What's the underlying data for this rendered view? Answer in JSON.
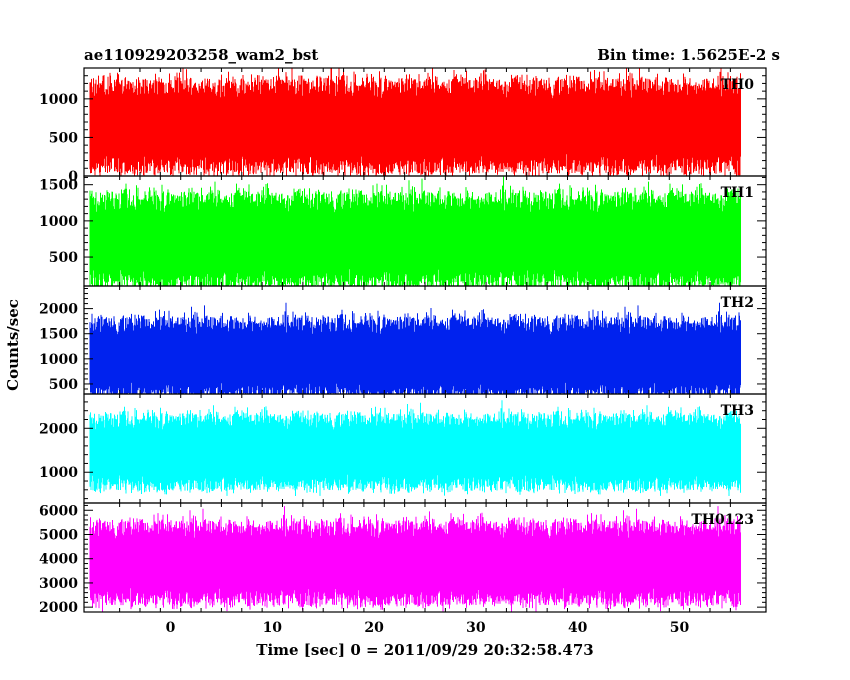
{
  "header": {
    "title": "ae110929203258_wam2_bst",
    "bin_time": "Bin time: 1.5625E-2 s"
  },
  "chart_data": {
    "type": "line",
    "title": "ae110929203258_wam2_bst",
    "subtitle": "Bin time: 1.5625E-2 s",
    "xlabel": "Time [sec] 0 = 2011/09/29 20:32:58.473",
    "ylabel": "Counts/sec",
    "xlim": [
      -8.5,
      58.5
    ],
    "x_range_of_data": [
      -8,
      56
    ],
    "x_ticks": [
      0,
      10,
      20,
      30,
      40,
      50
    ],
    "bin_time_s": 0.015625,
    "grid": false,
    "series": [
      {
        "name": "TH0",
        "color": "#ff0000",
        "ylim": [
          0,
          1400
        ],
        "y_ticks": [
          0,
          500,
          1000
        ],
        "mean": 640,
        "typical_range": [
          100,
          1300
        ]
      },
      {
        "name": "TH1",
        "color": "#00ff00",
        "ylim": [
          100,
          1620
        ],
        "y_ticks": [
          500,
          1000,
          1500
        ],
        "mean": 720,
        "typical_range": [
          150,
          1450
        ]
      },
      {
        "name": "TH2",
        "color": "#0022ee",
        "ylim": [
          300,
          2450
        ],
        "y_ticks": [
          500,
          1000,
          1500,
          2000
        ],
        "mean": 1000,
        "typical_range": [
          400,
          2000
        ]
      },
      {
        "name": "TH3",
        "color": "#00ffff",
        "ylim": [
          300,
          2780
        ],
        "y_ticks": [
          1000,
          2000
        ],
        "mean": 1450,
        "typical_range": [
          700,
          2400
        ]
      },
      {
        "name": "TH0123",
        "color": "#ff00ff",
        "ylim": [
          1800,
          6300
        ],
        "y_ticks": [
          2000,
          3000,
          4000,
          5000,
          6000
        ],
        "mean": 3800,
        "typical_range": [
          2200,
          5600
        ]
      }
    ]
  }
}
